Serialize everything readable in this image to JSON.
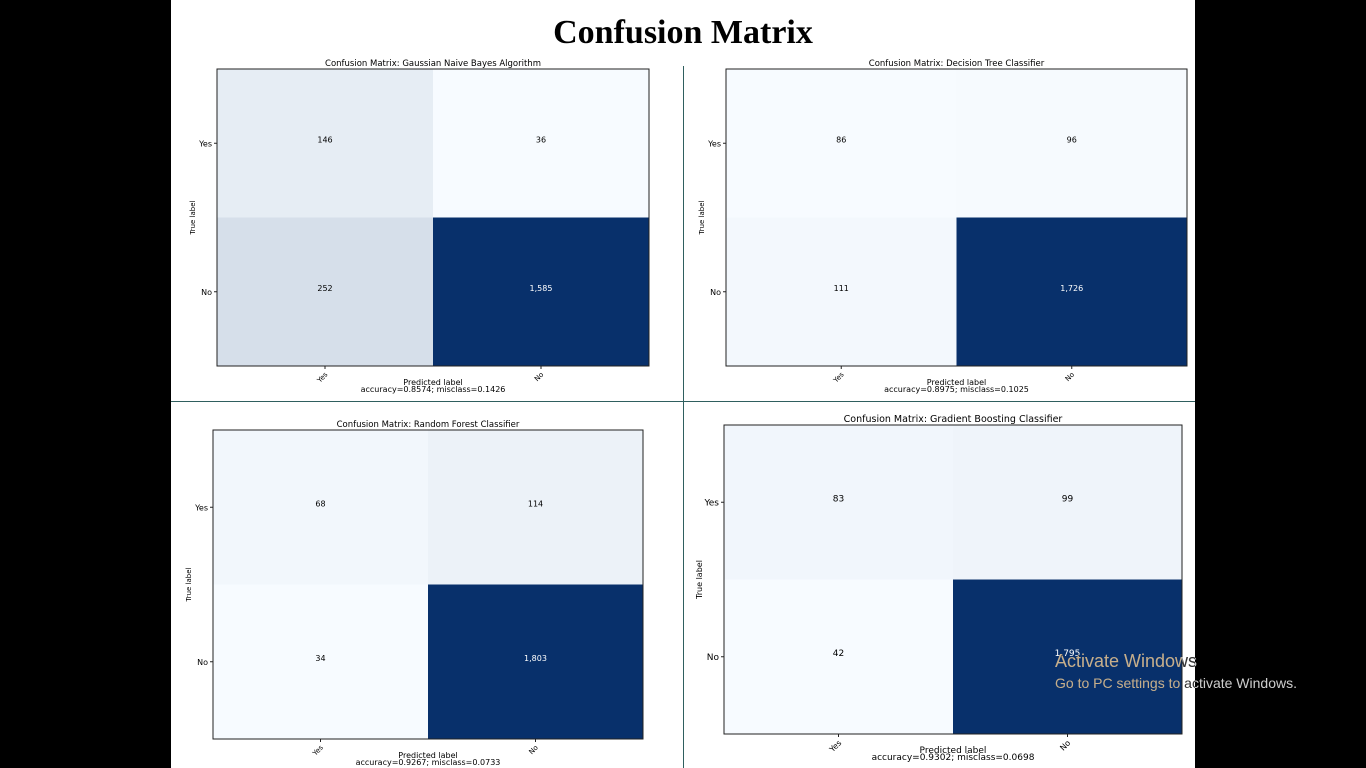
{
  "slide": {
    "title": "Confusion Matrix"
  },
  "watermark": {
    "title": "Activate Windows",
    "subtitle": "Go to PC settings to activate Windows."
  },
  "colors": {
    "cmap_low": "#f7fbff",
    "cmap_high": "#08306b",
    "divider": "#2f5f5f"
  },
  "chart_data": [
    {
      "type": "heatmap",
      "title": "Confusion Matrix: Gaussian Naive Bayes Algorithm",
      "xlabel": "Predicted label",
      "ylabel": "True label",
      "footer": "accuracy=0.8574; misclass=0.1426",
      "x_categories": [
        "Yes",
        "No"
      ],
      "y_categories": [
        "Yes",
        "No"
      ],
      "values": [
        [
          146,
          36
        ],
        [
          252,
          1585
        ]
      ],
      "value_labels": [
        [
          "146",
          "36"
        ],
        [
          "252",
          "1,585"
        ]
      ]
    },
    {
      "type": "heatmap",
      "title": "Confusion Matrix: Decision Tree Classifier",
      "xlabel": "Predicted label",
      "ylabel": "True label",
      "footer": "accuracy=0.8975; misclass=0.1025",
      "x_categories": [
        "Yes",
        "No"
      ],
      "y_categories": [
        "Yes",
        "No"
      ],
      "values": [
        [
          86,
          96
        ],
        [
          111,
          1726
        ]
      ],
      "value_labels": [
        [
          "86",
          "96"
        ],
        [
          "111",
          "1,726"
        ]
      ]
    },
    {
      "type": "heatmap",
      "title": "Confusion Matrix: Random Forest Classifier",
      "xlabel": "Predicted label",
      "ylabel": "True label",
      "footer": "accuracy=0.9267; misclass=0.0733",
      "x_categories": [
        "Yes",
        "No"
      ],
      "y_categories": [
        "Yes",
        "No"
      ],
      "values": [
        [
          68,
          114
        ],
        [
          34,
          1803
        ]
      ],
      "value_labels": [
        [
          "68",
          "114"
        ],
        [
          "34",
          "1,803"
        ]
      ]
    },
    {
      "type": "heatmap",
      "title": "Confusion Matrix: Gradient Boosting Classifier",
      "xlabel": "Predicted label",
      "ylabel": "True label",
      "footer": "accuracy=0.9302; misclass=0.0698",
      "x_categories": [
        "Yes",
        "No"
      ],
      "y_categories": [
        "Yes",
        "No"
      ],
      "values": [
        [
          83,
          99
        ],
        [
          42,
          1795
        ]
      ],
      "value_labels": [
        [
          "83",
          "99"
        ],
        [
          "42",
          "1,795"
        ]
      ]
    }
  ]
}
